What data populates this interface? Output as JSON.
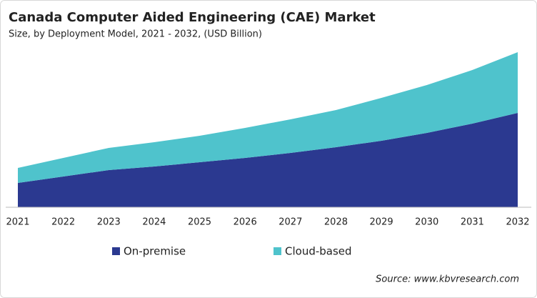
{
  "chart_data": {
    "type": "stacked_area",
    "title": "Canada Computer Aided Engineering (CAE) Market",
    "subtitle": "Size, by Deployment Model, 2021 - 2032, (USD Billion)",
    "source": "Source: www.kbvresearch.com",
    "categories": [
      "2021",
      "2022",
      "2023",
      "2024",
      "2025",
      "2026",
      "2027",
      "2028",
      "2029",
      "2030",
      "2031",
      "2032"
    ],
    "series": [
      {
        "name": "On-premise",
        "color": "#2b3990",
        "values": [
          0.34,
          0.43,
          0.52,
          0.57,
          0.63,
          0.69,
          0.76,
          0.84,
          0.93,
          1.04,
          1.17,
          1.32
        ]
      },
      {
        "name": "Cloud-based",
        "color": "#4fc3cc",
        "values": [
          0.21,
          0.26,
          0.31,
          0.34,
          0.37,
          0.42,
          0.47,
          0.52,
          0.6,
          0.67,
          0.75,
          0.85
        ]
      }
    ],
    "ylim": [
      0,
      2.4
    ]
  }
}
